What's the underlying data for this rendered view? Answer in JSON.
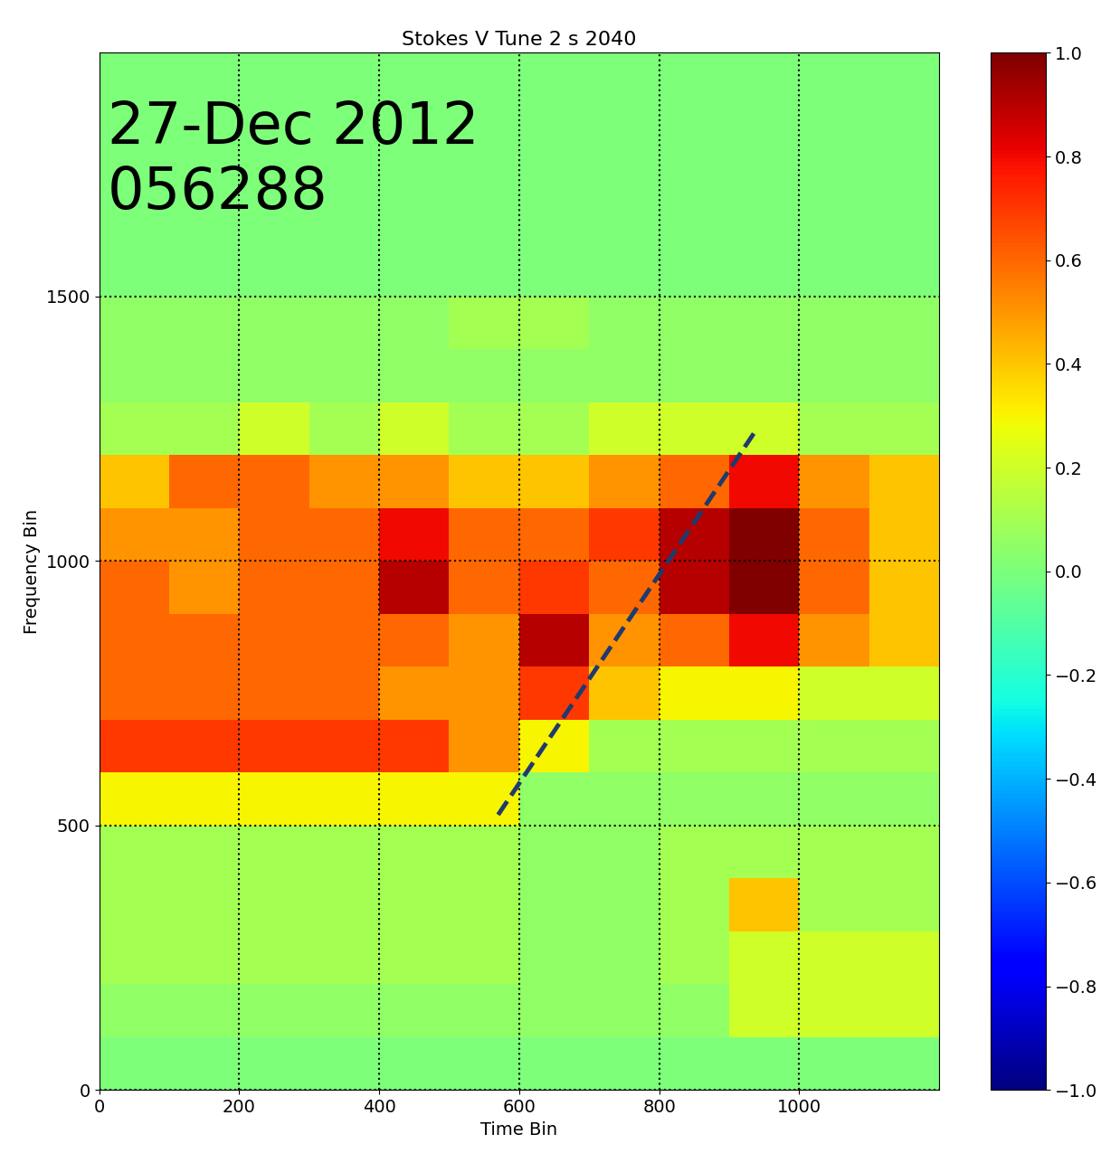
{
  "chart_data": {
    "type": "heatmap",
    "title": "Stokes V Tune 2 s 2040",
    "x_label": "Time Bin",
    "y_label": "Frequency Bin",
    "annotations": [
      "27-Dec 2012",
      "056288"
    ],
    "xlim": [
      0,
      1200
    ],
    "ylim": [
      0,
      1960
    ],
    "xticks": [
      0,
      200,
      400,
      600,
      800,
      1000
    ],
    "yticks": [
      0,
      500,
      1000,
      1500
    ],
    "grid": true,
    "overlay_line": {
      "x": [
        570,
        940
      ],
      "y": [
        520,
        1250
      ],
      "color": "#1f3a6e",
      "line_style": "dashed"
    },
    "cells": {
      "x_edges": [
        0,
        100,
        200,
        300,
        400,
        500,
        600,
        700,
        800,
        900,
        1000,
        1100,
        1200
      ],
      "y_edges": [
        0,
        100,
        200,
        300,
        400,
        500,
        600,
        700,
        800,
        900,
        1000,
        1100,
        1200,
        1300,
        1400,
        1500,
        1600,
        1700,
        1800,
        1900,
        1960
      ],
      "values": [
        [
          0,
          0,
          0,
          0,
          0,
          0,
          0,
          0,
          0,
          0,
          0,
          0
        ],
        [
          0.05,
          0.05,
          0.05,
          0.05,
          0.05,
          0.05,
          0.05,
          0.05,
          0.05,
          0.2,
          0.2,
          0.2
        ],
        [
          0.1,
          0.1,
          0.1,
          0.1,
          0.1,
          0.1,
          0.05,
          0.05,
          0.1,
          0.2,
          0.2,
          0.2
        ],
        [
          0.1,
          0.1,
          0.1,
          0.1,
          0.1,
          0.1,
          0.05,
          0.05,
          0.1,
          0.4,
          0.1,
          0.1
        ],
        [
          0.1,
          0.1,
          0.1,
          0.1,
          0.1,
          0.1,
          0.05,
          0.05,
          0.1,
          0.1,
          0.1,
          0.1
        ],
        [
          0.3,
          0.3,
          0.3,
          0.3,
          0.3,
          0.3,
          0.05,
          0.05,
          0.05,
          0.05,
          0.05,
          0.05
        ],
        [
          0.7,
          0.7,
          0.7,
          0.7,
          0.7,
          0.5,
          0.3,
          0.1,
          0.1,
          0.1,
          0.1,
          0.1
        ],
        [
          0.6,
          0.6,
          0.6,
          0.6,
          0.5,
          0.5,
          0.7,
          0.4,
          0.3,
          0.3,
          0.2,
          0.2
        ],
        [
          0.6,
          0.6,
          0.6,
          0.6,
          0.6,
          0.5,
          0.9,
          0.5,
          0.6,
          0.8,
          0.5,
          0.4
        ],
        [
          0.6,
          0.5,
          0.6,
          0.6,
          0.9,
          0.6,
          0.7,
          0.6,
          0.9,
          1.0,
          0.6,
          0.4
        ],
        [
          0.5,
          0.5,
          0.6,
          0.6,
          0.8,
          0.6,
          0.6,
          0.7,
          0.9,
          1.0,
          0.6,
          0.4
        ],
        [
          0.4,
          0.6,
          0.6,
          0.5,
          0.5,
          0.4,
          0.4,
          0.5,
          0.6,
          0.8,
          0.5,
          0.4
        ],
        [
          0.1,
          0.1,
          0.2,
          0.1,
          0.2,
          0.1,
          0.1,
          0.2,
          0.2,
          0.2,
          0.1,
          0.1
        ],
        [
          0.05,
          0.05,
          0.05,
          0.05,
          0.05,
          0.05,
          0.05,
          0.05,
          0.05,
          0.05,
          0.05,
          0.05
        ],
        [
          0.05,
          0.05,
          0.05,
          0.05,
          0.05,
          0.1,
          0.1,
          0.05,
          0.05,
          0.05,
          0.05,
          0.05
        ],
        [
          0,
          0,
          0,
          0,
          0,
          0,
          0,
          0,
          0,
          0,
          0,
          0
        ],
        [
          0,
          0,
          0,
          0,
          0,
          0,
          0,
          0,
          0,
          0,
          0,
          0
        ],
        [
          0,
          0,
          0,
          0,
          0,
          0,
          0,
          0,
          0,
          0,
          0,
          0
        ],
        [
          0,
          0,
          0,
          0,
          0,
          0,
          0,
          0,
          0,
          0,
          0,
          0
        ],
        [
          0,
          0,
          0,
          0,
          0,
          0,
          0,
          0,
          0,
          0,
          0,
          0
        ]
      ]
    },
    "colorbar": {
      "range": [
        -1.0,
        1.0
      ],
      "ticks": [
        {
          "value": -1.0,
          "label": "−1.0"
        },
        {
          "value": -0.8,
          "label": "−0.8"
        },
        {
          "value": -0.6,
          "label": "−0.6"
        },
        {
          "value": -0.4,
          "label": "−0.4"
        },
        {
          "value": -0.2,
          "label": "−0.2"
        },
        {
          "value": 0.0,
          "label": "0.0"
        },
        {
          "value": 0.2,
          "label": "0.2"
        },
        {
          "value": 0.4,
          "label": "0.4"
        },
        {
          "value": 0.6,
          "label": "0.6"
        },
        {
          "value": 0.8,
          "label": "0.8"
        },
        {
          "value": 1.0,
          "label": "1.0"
        }
      ]
    }
  }
}
